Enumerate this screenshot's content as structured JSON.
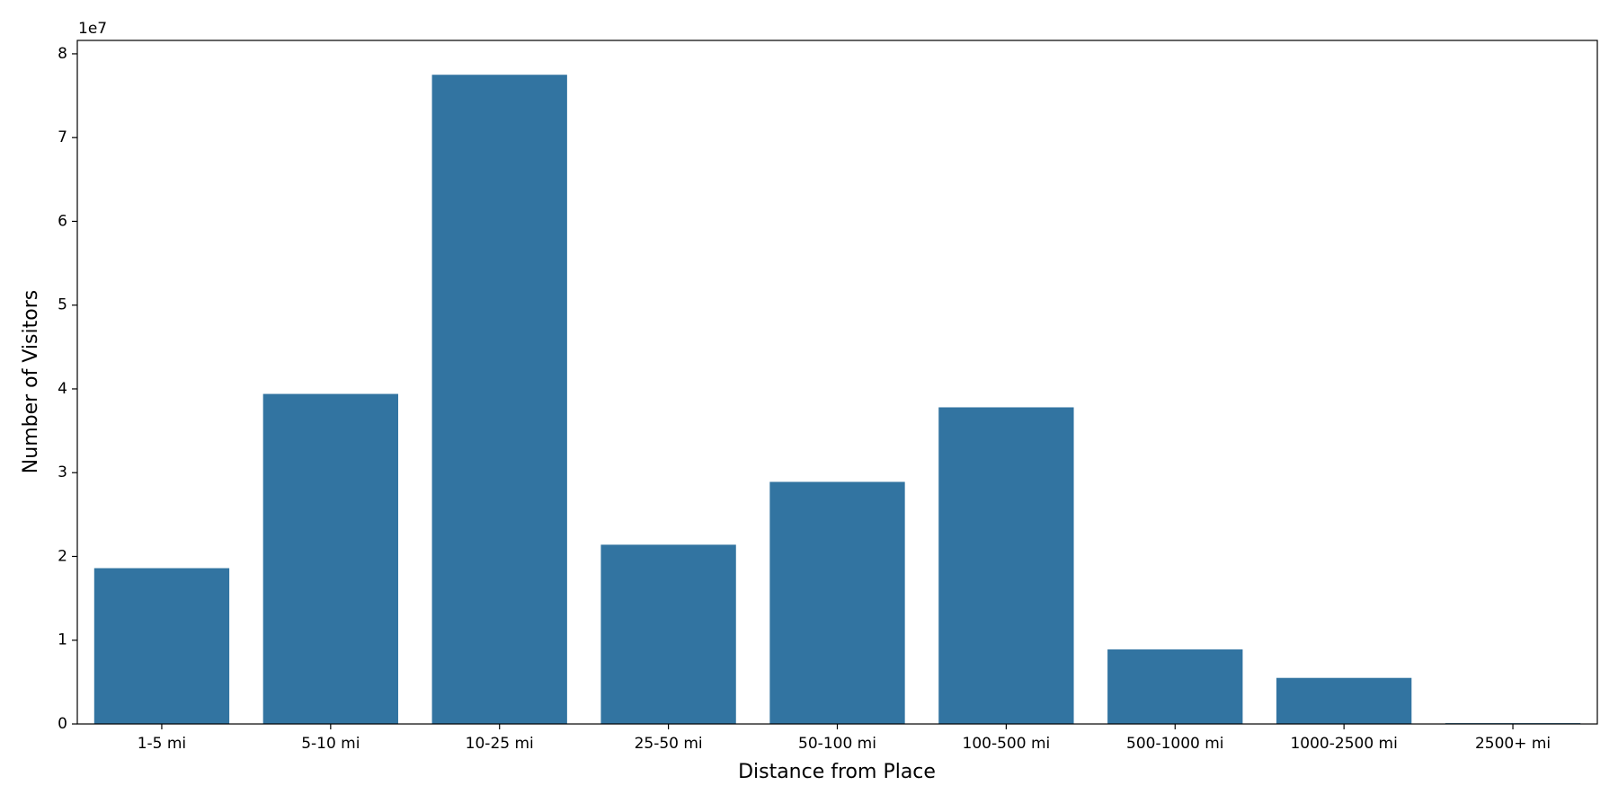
{
  "chart_data": {
    "type": "bar",
    "x_label": "Distance from Place",
    "y_label": "Number of Visitors",
    "y_offset_text": "1e7",
    "categories": [
      "1-5 mi",
      "5-10 mi",
      "10-25 mi",
      "25-50 mi",
      "50-100 mi",
      "100-500 mi",
      "500-1000 mi",
      "1000-2500 mi",
      "2500+ mi"
    ],
    "values": [
      1.86,
      3.94,
      7.75,
      2.14,
      2.89,
      3.78,
      0.89,
      0.55,
      0.01
    ],
    "color": "#3274a1",
    "ylim": [
      0,
      8.16
    ],
    "yticks": [
      0,
      1,
      2,
      3,
      4,
      5,
      6,
      7,
      8
    ],
    "grid": false
  }
}
